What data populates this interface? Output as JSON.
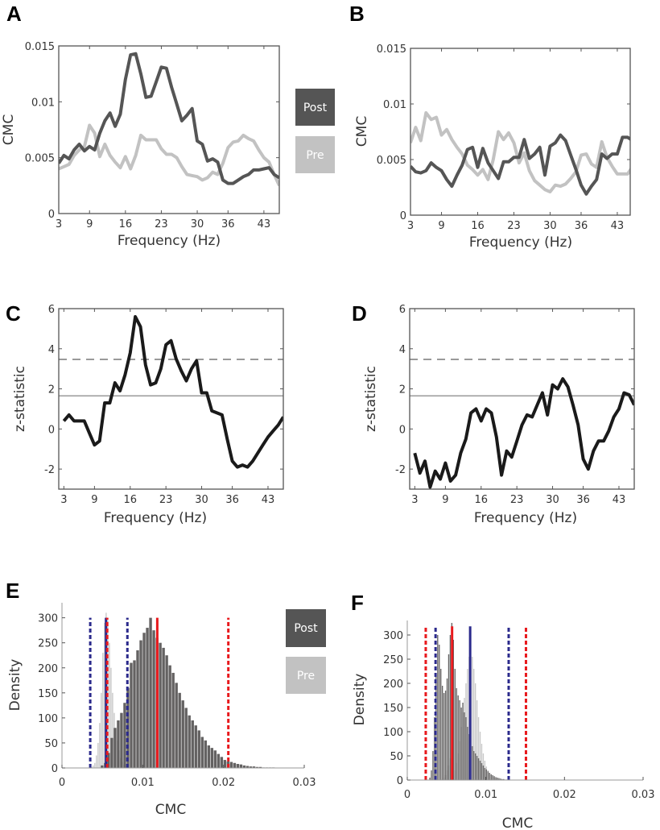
{
  "panel_labels": {
    "A": "A",
    "B": "B",
    "C": "C",
    "D": "D",
    "E": "E",
    "F": "F"
  },
  "legend": {
    "post": "Post",
    "pre": "Pre"
  },
  "colors": {
    "post": "#555555",
    "pre": "#c2c2c2",
    "line": "#1a1a1a",
    "red": "#e8191d",
    "blue": "#2b2a8c",
    "threshold": "#9a9a9a"
  },
  "chart_data": [
    {
      "id": "A",
      "type": "line",
      "xlabel": "Frequency (Hz)",
      "ylabel": "CMC",
      "xlim": [
        3,
        46
      ],
      "ylim": [
        0,
        0.015
      ],
      "xticks": [
        3,
        9,
        16,
        23,
        30,
        36,
        43
      ],
      "yticks": [
        0,
        0.005,
        0.01,
        0.015
      ],
      "ytick_labels": [
        "0",
        "0.005",
        "0.01",
        "0.015"
      ],
      "legend_position": "right",
      "x_start": 3,
      "series": [
        {
          "name": "Post",
          "values": [
            0.0045,
            0.0052,
            0.0049,
            0.0057,
            0.0062,
            0.0056,
            0.006,
            0.0057,
            0.0072,
            0.0083,
            0.009,
            0.0078,
            0.0089,
            0.012,
            0.0142,
            0.0143,
            0.0125,
            0.0104,
            0.0105,
            0.0118,
            0.0131,
            0.013,
            0.0113,
            0.0098,
            0.0083,
            0.0088,
            0.0094,
            0.0065,
            0.0062,
            0.0047,
            0.0049,
            0.0046,
            0.003,
            0.0027,
            0.0027,
            0.003,
            0.0033,
            0.0035,
            0.0039,
            0.0039,
            0.004,
            0.0041,
            0.0035,
            0.0032
          ]
        },
        {
          "name": "Pre",
          "values": [
            0.004,
            0.0042,
            0.0044,
            0.0052,
            0.0057,
            0.006,
            0.0079,
            0.0072,
            0.0051,
            0.0062,
            0.0052,
            0.0046,
            0.0041,
            0.0051,
            0.004,
            0.0052,
            0.007,
            0.0066,
            0.0066,
            0.0066,
            0.0058,
            0.0053,
            0.0053,
            0.005,
            0.0042,
            0.0035,
            0.0034,
            0.0033,
            0.003,
            0.0032,
            0.0037,
            0.0035,
            0.0045,
            0.0059,
            0.0064,
            0.0065,
            0.007,
            0.0067,
            0.0065,
            0.0057,
            0.005,
            0.0046,
            0.0035,
            0.0025
          ]
        }
      ]
    },
    {
      "id": "B",
      "type": "line",
      "xlabel": "Frequency (Hz)",
      "ylabel": "CMC",
      "xlim": [
        3,
        45.5
      ],
      "ylim": [
        0,
        0.015
      ],
      "xticks": [
        3,
        9,
        16,
        23,
        30,
        36,
        43
      ],
      "yticks": [
        0,
        0.005,
        0.01,
        0.015
      ],
      "ytick_labels": [
        "0",
        "0.005",
        "0.01",
        "0.015"
      ],
      "x_start": 3,
      "series": [
        {
          "name": "Post",
          "values": [
            0.0044,
            0.0039,
            0.0038,
            0.004,
            0.0047,
            0.0043,
            0.004,
            0.0032,
            0.0026,
            0.0036,
            0.0045,
            0.0059,
            0.0061,
            0.0043,
            0.006,
            0.0047,
            0.004,
            0.0033,
            0.0048,
            0.0048,
            0.0052,
            0.0052,
            0.0068,
            0.0051,
            0.0055,
            0.0061,
            0.0036,
            0.0062,
            0.0065,
            0.0072,
            0.0067,
            0.0054,
            0.0041,
            0.0027,
            0.0019,
            0.0026,
            0.0032,
            0.0055,
            0.0051,
            0.0055,
            0.0055,
            0.007,
            0.007,
            0.0067
          ]
        },
        {
          "name": "Pre",
          "values": [
            0.0065,
            0.0079,
            0.0067,
            0.0092,
            0.0086,
            0.0088,
            0.0072,
            0.0077,
            0.0068,
            0.0061,
            0.0055,
            0.0045,
            0.0041,
            0.0036,
            0.0041,
            0.0032,
            0.005,
            0.0075,
            0.0068,
            0.0074,
            0.0065,
            0.0047,
            0.0056,
            0.004,
            0.0031,
            0.0027,
            0.0023,
            0.0021,
            0.0027,
            0.0026,
            0.0028,
            0.0033,
            0.0039,
            0.0054,
            0.0055,
            0.0046,
            0.0043,
            0.0066,
            0.0052,
            0.0044,
            0.0037,
            0.0037,
            0.0037,
            0.0044
          ]
        }
      ]
    },
    {
      "id": "C",
      "type": "line",
      "xlabel": "Frequency (Hz)",
      "ylabel": "z-statistic",
      "xlim": [
        2,
        46
      ],
      "ylim": [
        -3,
        6
      ],
      "xticks": [
        3,
        9,
        16,
        23,
        30,
        36,
        43
      ],
      "yticks": [
        -2,
        0,
        2,
        4,
        6
      ],
      "ytick_labels": [
        "-2",
        "0",
        "2",
        "4",
        "6"
      ],
      "thresholds": [
        {
          "value": 1.65,
          "style": "solid"
        },
        {
          "value": 3.47,
          "style": "dashed"
        }
      ],
      "x_start": 3,
      "series": [
        {
          "name": "z",
          "values": [
            0.4,
            0.7,
            0.4,
            0.4,
            0.4,
            -0.2,
            -0.8,
            -0.6,
            1.3,
            1.3,
            2.3,
            1.9,
            2.7,
            3.8,
            5.6,
            5.1,
            3.2,
            2.2,
            2.3,
            3.0,
            4.2,
            4.4,
            3.5,
            2.9,
            2.4,
            3.0,
            3.4,
            1.8,
            1.8,
            0.9,
            0.8,
            0.7,
            -0.5,
            -1.6,
            -1.9,
            -1.8,
            -1.9,
            -1.6,
            -1.2,
            -0.8,
            -0.4,
            -0.1,
            0.2,
            0.6
          ]
        }
      ]
    },
    {
      "id": "D",
      "type": "line",
      "xlabel": "Frequency (Hz)",
      "ylabel": "z-statistic",
      "xlim": [
        2,
        46
      ],
      "ylim": [
        -3,
        6
      ],
      "xticks": [
        3,
        9,
        16,
        23,
        30,
        36,
        43
      ],
      "yticks": [
        -2,
        0,
        2,
        4,
        6
      ],
      "ytick_labels": [
        "-2",
        "0",
        "2",
        "4",
        "6"
      ],
      "thresholds": [
        {
          "value": 1.65,
          "style": "solid"
        },
        {
          "value": 3.47,
          "style": "dashed"
        }
      ],
      "x_start": 3,
      "series": [
        {
          "name": "z",
          "values": [
            -1.2,
            -2.2,
            -1.6,
            -2.9,
            -2.1,
            -2.5,
            -1.7,
            -2.6,
            -2.3,
            -1.2,
            -0.5,
            0.8,
            1.0,
            0.4,
            1.0,
            0.8,
            -0.4,
            -2.3,
            -1.1,
            -1.4,
            -0.6,
            0.2,
            0.7,
            0.6,
            1.2,
            1.8,
            0.7,
            2.2,
            2.0,
            2.5,
            2.1,
            1.2,
            0.2,
            -1.5,
            -2.0,
            -1.1,
            -0.6,
            -0.6,
            -0.1,
            0.6,
            1.0,
            1.8,
            1.7,
            1.2
          ]
        }
      ]
    },
    {
      "id": "E",
      "type": "bar",
      "xlabel": "CMC",
      "ylabel": "Density",
      "xlim": [
        0,
        0.03
      ],
      "ylim": [
        0,
        330
      ],
      "xticks": [
        0,
        0.01,
        0.02,
        0.03
      ],
      "xtick_labels": [
        "0",
        "0.01",
        "0.02",
        "0.03"
      ],
      "yticks": [
        0,
        50,
        100,
        150,
        200,
        250,
        300
      ],
      "ytick_labels": [
        "0",
        "50",
        "100",
        "150",
        "200",
        "250",
        "300"
      ],
      "legend_position": "right",
      "series": [
        {
          "name": "Pre",
          "bin_start": 0.0034,
          "bin_width": 0.0002,
          "values": [
            1,
            2,
            5,
            10,
            25,
            50,
            90,
            150,
            230,
            290,
            310,
            295,
            250,
            200,
            150,
            110,
            80,
            55,
            35,
            20,
            12,
            6,
            3,
            2,
            1
          ]
        },
        {
          "name": "Post",
          "bin_start": 0.0048,
          "bin_width": 0.0004,
          "values": [
            5,
            10,
            30,
            60,
            80,
            95,
            110,
            130,
            160,
            210,
            215,
            235,
            255,
            270,
            280,
            300,
            275,
            260,
            250,
            240,
            225,
            205,
            190,
            170,
            150,
            135,
            120,
            105,
            95,
            85,
            75,
            62,
            55,
            45,
            40,
            35,
            28,
            22,
            16,
            13,
            12,
            10,
            8,
            7,
            5,
            4,
            3,
            3,
            2,
            2,
            1,
            1,
            1,
            1
          ]
        }
      ],
      "vlines": [
        {
          "group": "Pre",
          "color": "blue",
          "style": "dashed",
          "x": 0.0035
        },
        {
          "group": "Pre",
          "color": "blue",
          "style": "solid",
          "x": 0.00545
        },
        {
          "group": "Pre",
          "color": "blue",
          "style": "dashed",
          "x": 0.0081
        },
        {
          "group": "Post",
          "color": "red",
          "style": "dashed",
          "x": 0.0056
        },
        {
          "group": "Post",
          "color": "red",
          "style": "solid",
          "x": 0.0118
        },
        {
          "group": "Post",
          "color": "red",
          "style": "dashed",
          "x": 0.0206
        }
      ],
      "vline_height": 300
    },
    {
      "id": "F",
      "type": "bar",
      "xlabel": "CMC",
      "ylabel": "Density",
      "xlim": [
        0,
        0.03
      ],
      "ylim": [
        0,
        330
      ],
      "xticks": [
        0,
        0.01,
        0.02,
        0.03
      ],
      "xtick_labels": [
        "0",
        "0.01",
        "0.02",
        "0.03"
      ],
      "yticks": [
        0,
        50,
        100,
        150,
        200,
        250,
        300
      ],
      "ytick_labels": [
        "0",
        "50",
        "100",
        "150",
        "200",
        "250",
        "300"
      ],
      "series": [
        {
          "name": "Pre",
          "bin_start": 0.0044,
          "bin_width": 0.0002,
          "values": [
            2,
            5,
            10,
            20,
            30,
            45,
            5,
            10,
            20,
            35,
            55,
            80,
            110,
            140,
            170,
            200,
            230,
            255,
            265,
            255,
            230,
            200,
            165,
            130,
            100,
            75,
            55,
            40,
            28,
            20,
            14,
            10,
            7,
            5,
            3,
            2,
            1
          ]
        },
        {
          "name": "Post",
          "bin_start": 0.0028,
          "bin_width": 0.0002,
          "values": [
            5,
            20,
            60,
            130,
            220,
            300,
            280,
            230,
            195,
            180,
            185,
            210,
            260,
            300,
            325,
            290,
            230,
            190,
            175,
            165,
            150,
            160,
            140,
            130,
            110,
            95,
            85,
            70,
            60,
            55,
            50,
            45,
            40,
            35,
            30,
            25,
            22,
            18,
            15,
            12,
            10,
            8,
            6,
            5,
            4,
            3,
            2,
            2,
            1,
            1
          ]
        }
      ],
      "vlines": [
        {
          "group": "Post",
          "color": "red",
          "style": "dashed",
          "x": 0.00235
        },
        {
          "group": "Pre",
          "color": "blue",
          "style": "dashed",
          "x": 0.0036
        },
        {
          "group": "Post",
          "color": "red",
          "style": "solid",
          "x": 0.0057
        },
        {
          "group": "Pre",
          "color": "blue",
          "style": "solid",
          "x": 0.008
        },
        {
          "group": "Pre",
          "color": "blue",
          "style": "dashed",
          "x": 0.0129
        },
        {
          "group": "Post",
          "color": "red",
          "style": "dashed",
          "x": 0.0151
        }
      ],
      "vline_height": 318
    }
  ]
}
